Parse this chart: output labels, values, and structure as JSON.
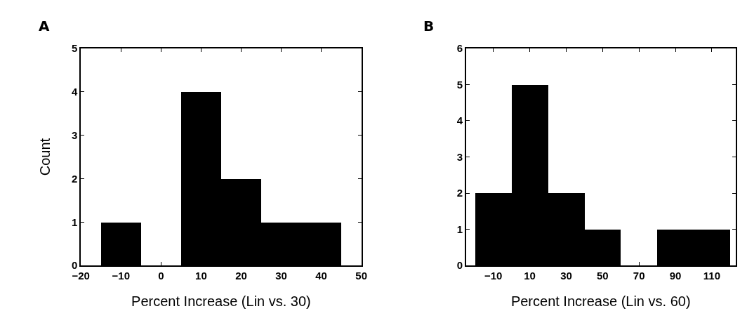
{
  "chart_data": [
    {
      "type": "histogram",
      "title": "A",
      "xlabel": "Percent Increase (Lin vs. 30)",
      "ylabel": "Count",
      "bins": [
        -15,
        -5,
        5,
        15,
        25,
        35,
        45
      ],
      "values": [
        1,
        0,
        4,
        2,
        1,
        1
      ],
      "color": "#000000",
      "xlim": [
        -20,
        50
      ],
      "xticks": [
        -20,
        -10,
        0,
        10,
        20,
        30,
        40,
        50
      ],
      "ylim": [
        0,
        5
      ],
      "yticks": [
        0,
        1,
        2,
        3,
        4,
        5
      ]
    },
    {
      "type": "histogram",
      "title": "B",
      "xlabel": "Percent Increase (Lin vs. 60)",
      "bins": [
        -20,
        0,
        20,
        40,
        60,
        80,
        100,
        120
      ],
      "values": [
        2,
        5,
        2,
        1,
        0,
        1,
        1
      ],
      "color": "#000000",
      "xlim": [
        -25,
        123
      ],
      "xticks": [
        -10,
        10,
        30,
        50,
        70,
        90,
        110
      ],
      "ylim": [
        0,
        6
      ],
      "yticks": [
        0,
        1,
        2,
        3,
        4,
        5,
        6
      ]
    }
  ]
}
